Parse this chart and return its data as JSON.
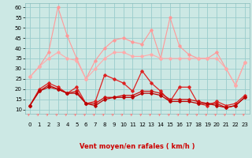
{
  "background_color": "#cce8e4",
  "grid_color": "#99cccc",
  "x_labels": [
    "0",
    "1",
    "2",
    "3",
    "4",
    "5",
    "6",
    "7",
    "8",
    "9",
    "10",
    "11",
    "12",
    "13",
    "14",
    "15",
    "16",
    "17",
    "18",
    "19",
    "20",
    "21",
    "22",
    "23"
  ],
  "xlabel": "Vent moyen/en rafales ( km/h )",
  "ylim": [
    8,
    62
  ],
  "yticks": [
    10,
    15,
    20,
    25,
    30,
    35,
    40,
    45,
    50,
    55,
    60
  ],
  "series": [
    {
      "name": "rafales_light1",
      "color": "#ff9999",
      "lw": 0.8,
      "marker": "D",
      "ms": 1.8,
      "values": [
        26,
        31,
        38,
        60,
        46,
        35,
        25,
        34,
        40,
        44,
        45,
        43,
        42,
        49,
        35,
        55,
        41,
        37,
        35,
        35,
        38,
        30,
        22,
        33
      ]
    },
    {
      "name": "rafales_light2",
      "color": "#ffaaaa",
      "lw": 0.8,
      "marker": "D",
      "ms": 1.8,
      "values": [
        26,
        31,
        35,
        38,
        35,
        34,
        25,
        30,
        35,
        38,
        38,
        36,
        36,
        37,
        35,
        35,
        35,
        35,
        35,
        35,
        35,
        30,
        22,
        33
      ]
    },
    {
      "name": "vent_moyen_dark1",
      "color": "#dd2222",
      "lw": 0.9,
      "marker": "D",
      "ms": 1.8,
      "values": [
        12,
        20,
        23,
        21,
        18,
        21,
        13,
        14,
        27,
        25,
        23,
        19,
        29,
        23,
        19,
        14,
        21,
        21,
        13,
        12,
        14,
        12,
        13,
        17
      ]
    },
    {
      "name": "vent_moyen_dark2",
      "color": "#cc1111",
      "lw": 0.9,
      "marker": "D",
      "ms": 1.8,
      "values": [
        12,
        19,
        22,
        20,
        18,
        19,
        13,
        13,
        16,
        16,
        17,
        17,
        19,
        19,
        18,
        15,
        15,
        15,
        14,
        13,
        13,
        11,
        12,
        16
      ]
    },
    {
      "name": "vent_moyen_dark3",
      "color": "#bb0000",
      "lw": 0.9,
      "marker": "D",
      "ms": 1.8,
      "values": [
        12,
        19,
        21,
        20,
        18,
        18,
        13,
        12,
        15,
        16,
        16,
        16,
        18,
        18,
        17,
        14,
        14,
        14,
        13,
        13,
        12,
        11,
        12,
        16
      ]
    }
  ],
  "arrow_color": "#ff7777",
  "xlabel_color": "#cc0000",
  "label_fontsize": 6.0,
  "tick_fontsize": 5.0
}
